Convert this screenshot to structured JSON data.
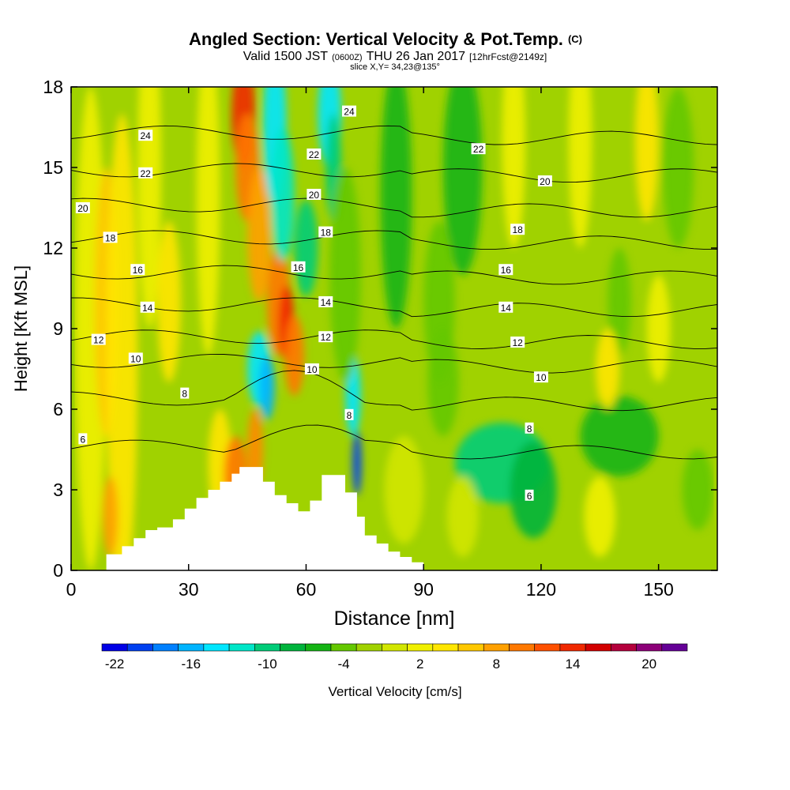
{
  "title": {
    "main": "Angled Section: Vertical Velocity & Pot.Temp.",
    "main_unit": "(C)",
    "valid_prefix": "Valid 1500 JST",
    "valid_utc": "(0600Z)",
    "valid_date": "THU 26 Jan 2017",
    "valid_fcst": "[12hrFcst@2149z]",
    "slice": "slice X,Y= 34,23@135°"
  },
  "chart_data": {
    "type": "heatmap",
    "xlabel": "Distance [nm]",
    "ylabel": "Height [Kft MSL]",
    "xlim": [
      0,
      165
    ],
    "ylim": [
      0,
      18
    ],
    "x_ticks": [
      0,
      30,
      60,
      90,
      120,
      150
    ],
    "y_ticks": [
      0,
      3,
      6,
      9,
      12,
      15,
      18
    ],
    "colorbar": {
      "label": "Vertical Velocity [cm/s]",
      "min": -23,
      "max": 23,
      "step": 2,
      "tick_values": [
        -22,
        -16,
        -10,
        -4,
        2,
        8,
        14,
        20
      ],
      "colors": [
        "#0000e6",
        "#0040f0",
        "#0080ff",
        "#00b4ff",
        "#00e6ff",
        "#00e6c8",
        "#00cc78",
        "#00b43c",
        "#14b414",
        "#64c800",
        "#a0d200",
        "#d2e600",
        "#f0f000",
        "#ffe600",
        "#ffc800",
        "#ffa000",
        "#ff7800",
        "#ff5000",
        "#f02800",
        "#d20000",
        "#b4003c",
        "#8c0078",
        "#640096"
      ]
    },
    "theta_isotherms_c": [
      6,
      8,
      10,
      12,
      14,
      16,
      18,
      20,
      22,
      24
    ],
    "theta_labels": [
      {
        "text": "24",
        "x": 19,
        "y": 16.2
      },
      {
        "text": "22",
        "x": 19,
        "y": 14.8
      },
      {
        "text": "20",
        "x": 3,
        "y": 13.5
      },
      {
        "text": "18",
        "x": 10,
        "y": 12.4
      },
      {
        "text": "16",
        "x": 17,
        "y": 11.2
      },
      {
        "text": "14",
        "x": 19.5,
        "y": 9.8
      },
      {
        "text": "12",
        "x": 7,
        "y": 8.6
      },
      {
        "text": "10",
        "x": 16.5,
        "y": 7.9
      },
      {
        "text": "8",
        "x": 29,
        "y": 6.6
      },
      {
        "text": "6",
        "x": 3,
        "y": 4.9
      },
      {
        "text": "24",
        "x": 71,
        "y": 17.1
      },
      {
        "text": "22",
        "x": 62,
        "y": 15.5
      },
      {
        "text": "20",
        "x": 62,
        "y": 14.0
      },
      {
        "text": "18",
        "x": 65,
        "y": 12.6
      },
      {
        "text": "16",
        "x": 58,
        "y": 11.3
      },
      {
        "text": "14",
        "x": 65,
        "y": 10.0
      },
      {
        "text": "12",
        "x": 65,
        "y": 8.7
      },
      {
        "text": "10",
        "x": 61.5,
        "y": 7.5
      },
      {
        "text": "8",
        "x": 71,
        "y": 5.8
      },
      {
        "text": "22",
        "x": 104,
        "y": 15.7
      },
      {
        "text": "20",
        "x": 121,
        "y": 14.5
      },
      {
        "text": "18",
        "x": 114,
        "y": 12.7
      },
      {
        "text": "16",
        "x": 111,
        "y": 11.2
      },
      {
        "text": "14",
        "x": 111,
        "y": 9.8
      },
      {
        "text": "12",
        "x": 114,
        "y": 8.5
      },
      {
        "text": "10",
        "x": 120,
        "y": 7.2
      },
      {
        "text": "8",
        "x": 117,
        "y": 5.3
      },
      {
        "text": "6",
        "x": 117,
        "y": 2.8
      }
    ],
    "terrain": {
      "x": [
        0,
        9,
        9,
        13,
        13,
        16,
        16,
        19,
        19,
        22,
        22,
        26,
        26,
        29,
        29,
        32,
        32,
        35,
        35,
        38,
        38,
        41,
        41,
        43,
        43,
        46,
        46,
        49,
        49,
        52,
        52,
        55,
        55,
        58,
        58,
        61,
        61,
        64,
        64,
        67,
        67,
        70,
        70,
        73,
        73,
        75,
        75,
        78,
        78,
        81,
        81,
        84,
        84,
        87,
        87,
        90,
        90,
        165
      ],
      "y": [
        0,
        0,
        0.6,
        0.6,
        0.9,
        0.9,
        1.2,
        1.2,
        1.5,
        1.5,
        1.6,
        1.6,
        1.9,
        1.9,
        2.3,
        2.3,
        2.7,
        2.7,
        3.0,
        3.0,
        3.3,
        3.3,
        3.6,
        3.6,
        3.85,
        3.85,
        3.85,
        3.85,
        3.3,
        3.3,
        2.8,
        2.8,
        2.5,
        2.5,
        2.2,
        2.2,
        2.6,
        2.6,
        3.55,
        3.55,
        3.55,
        3.55,
        2.9,
        2.9,
        2.0,
        2.0,
        1.3,
        1.3,
        1.0,
        1.0,
        0.7,
        0.7,
        0.5,
        0.5,
        0.3,
        0.3,
        0,
        0
      ]
    }
  }
}
